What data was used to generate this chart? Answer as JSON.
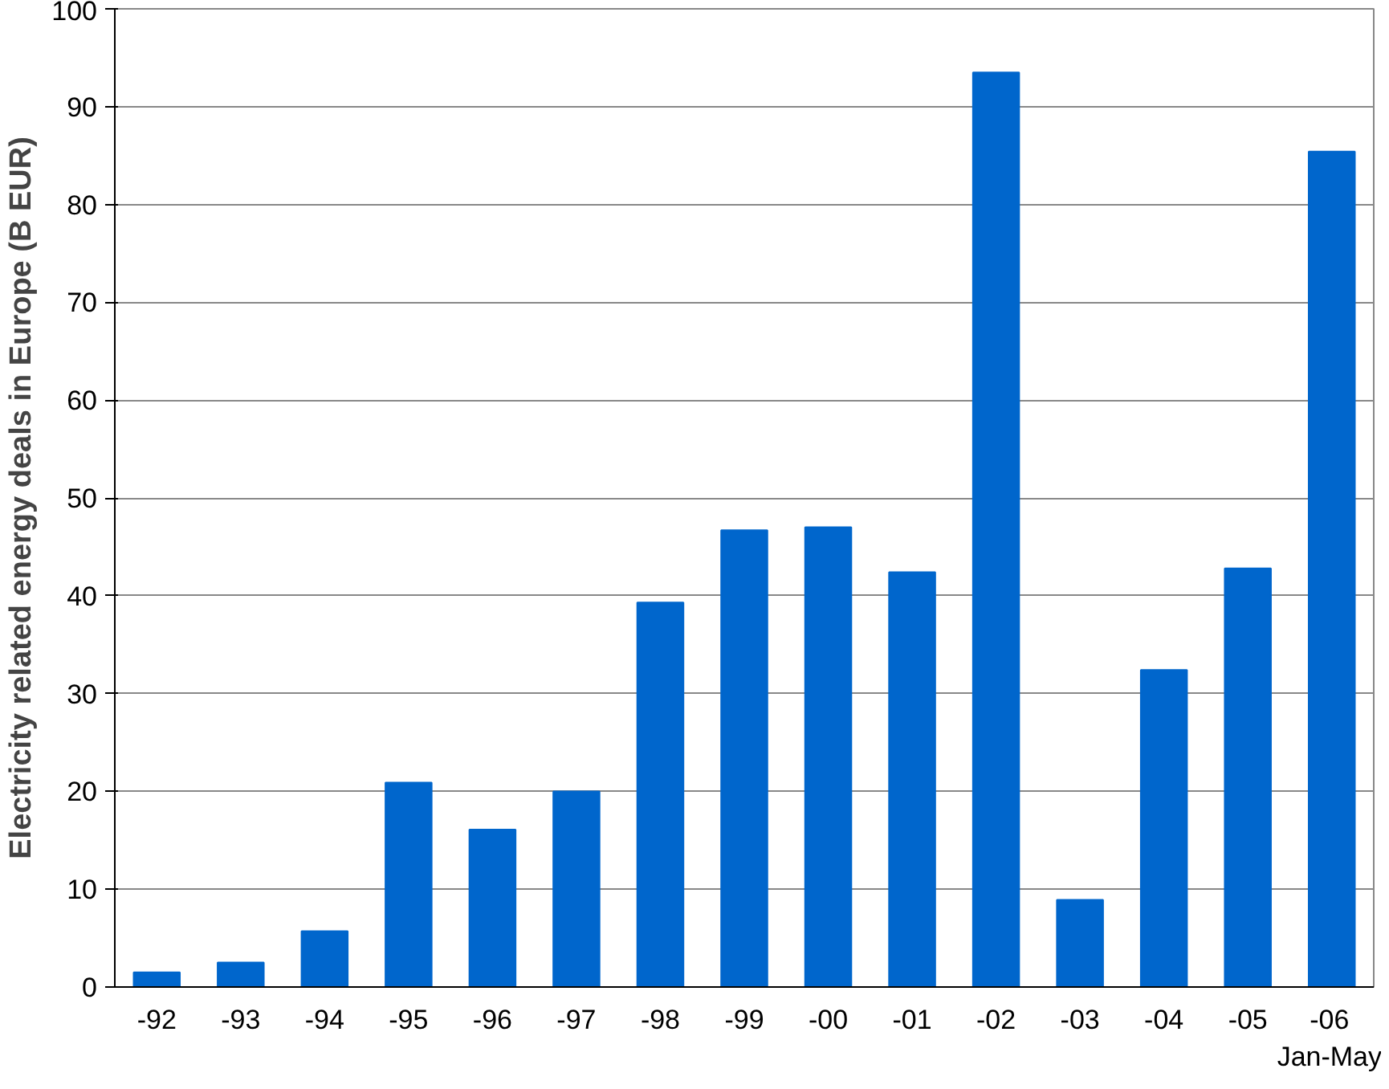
{
  "chart_data": {
    "type": "bar",
    "ylabel": "Electricity related energy deals in Europe (B EUR)",
    "categories": [
      "-92",
      "-93",
      "-94",
      "-95",
      "-96",
      "-97",
      "-98",
      "-99",
      "-00",
      "-01",
      "-02",
      "-03",
      "-04",
      "-05",
      "-06\nJan-May"
    ],
    "values": [
      1.5,
      2.5,
      5.7,
      20.9,
      16.1,
      20,
      39.3,
      46.7,
      47,
      42.4,
      93.5,
      8.9,
      32.4,
      42.8,
      85.4
    ],
    "color": "#0066cc",
    "ylim": [
      0,
      100
    ],
    "yticks": [
      0,
      10,
      20,
      30,
      40,
      50,
      60,
      70,
      80,
      90,
      100
    ],
    "grid": "y"
  }
}
